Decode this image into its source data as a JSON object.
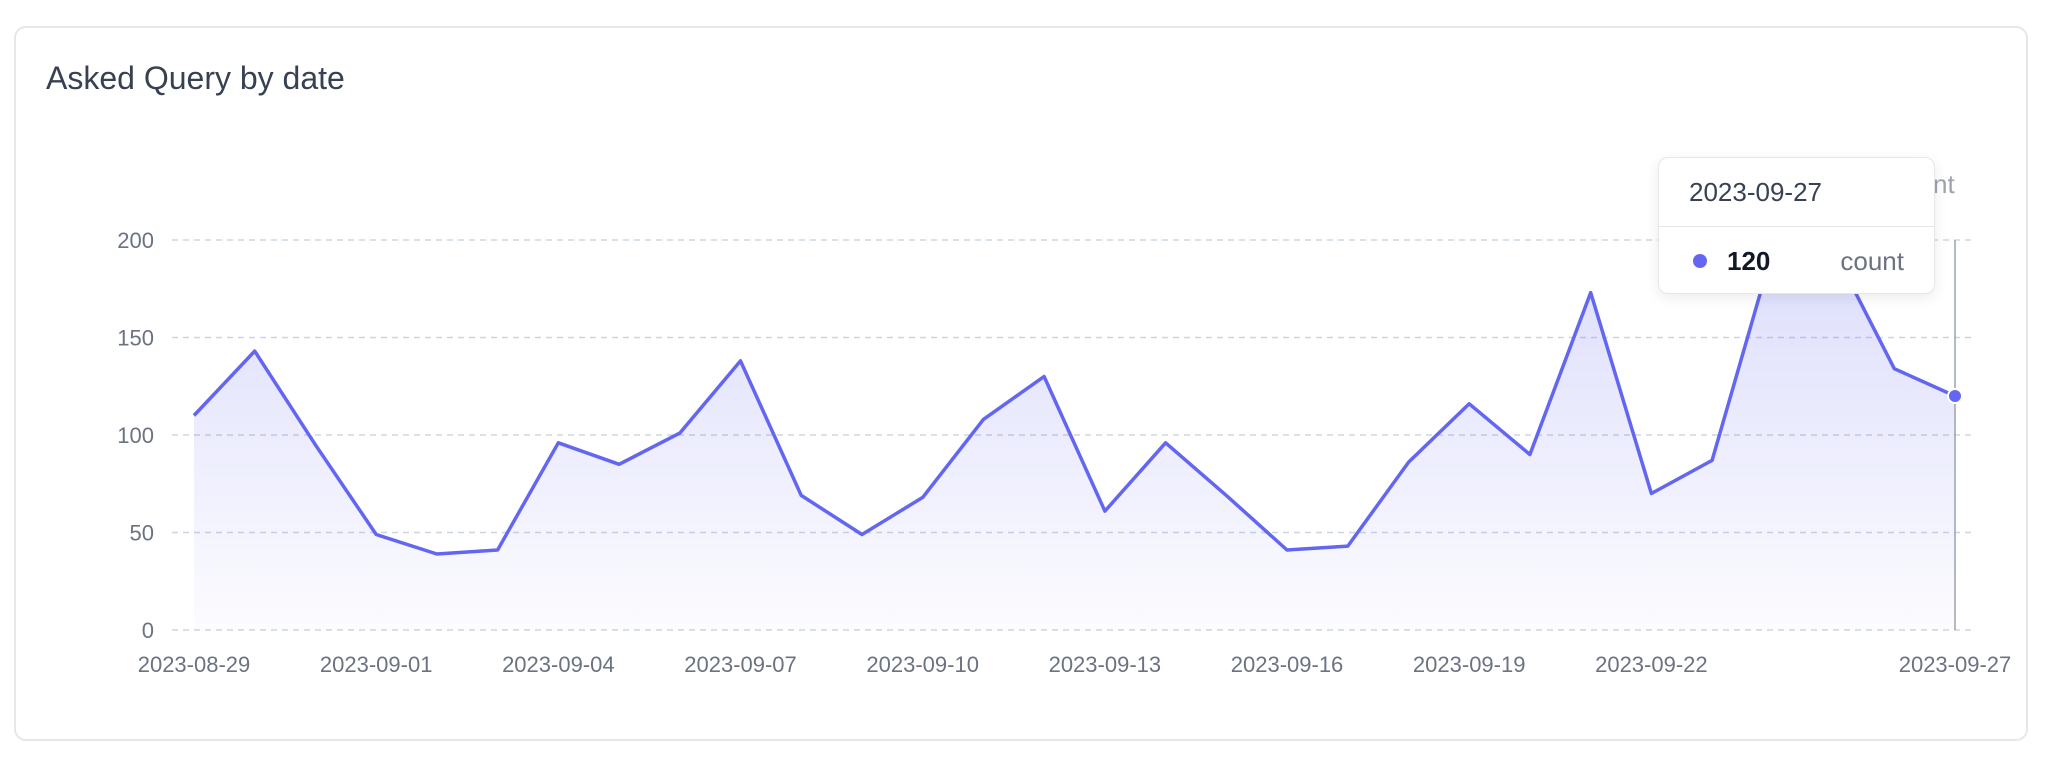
{
  "card": {
    "title": "Asked Query by date"
  },
  "legend_partial_text": "nt",
  "tooltip": {
    "date": "2023-09-27",
    "value": "120",
    "series_name": "count",
    "dot_color": "#6366f1"
  },
  "chart_data": {
    "type": "area",
    "title": "Asked Query by date",
    "x": [
      "2023-08-29",
      "2023-08-30",
      "2023-08-31",
      "2023-09-01",
      "2023-09-02",
      "2023-09-03",
      "2023-09-04",
      "2023-09-05",
      "2023-09-06",
      "2023-09-07",
      "2023-09-08",
      "2023-09-09",
      "2023-09-10",
      "2023-09-11",
      "2023-09-12",
      "2023-09-13",
      "2023-09-14",
      "2023-09-15",
      "2023-09-16",
      "2023-09-17",
      "2023-09-18",
      "2023-09-19",
      "2023-09-20",
      "2023-09-21",
      "2023-09-22",
      "2023-09-23",
      "2023-09-24",
      "2023-09-25",
      "2023-09-26",
      "2023-09-27"
    ],
    "series": [
      {
        "name": "count",
        "values": [
          110,
          143,
          95,
          49,
          39,
          41,
          96,
          85,
          101,
          138,
          69,
          49,
          68,
          108,
          130,
          61,
          96,
          69,
          41,
          43,
          86,
          116,
          90,
          173,
          70,
          87,
          195,
          195,
          134,
          120
        ]
      }
    ],
    "x_tick_labels": [
      "2023-08-29",
      "2023-09-01",
      "2023-09-04",
      "2023-09-07",
      "2023-09-10",
      "2023-09-13",
      "2023-09-16",
      "2023-09-19",
      "2023-09-22",
      "2023-09-27"
    ],
    "y_ticks": [
      0,
      50,
      100,
      150,
      200
    ],
    "ylim": [
      0,
      200
    ],
    "grid": true,
    "highlighted_x": "2023-09-27",
    "color": "#6366f1"
  }
}
